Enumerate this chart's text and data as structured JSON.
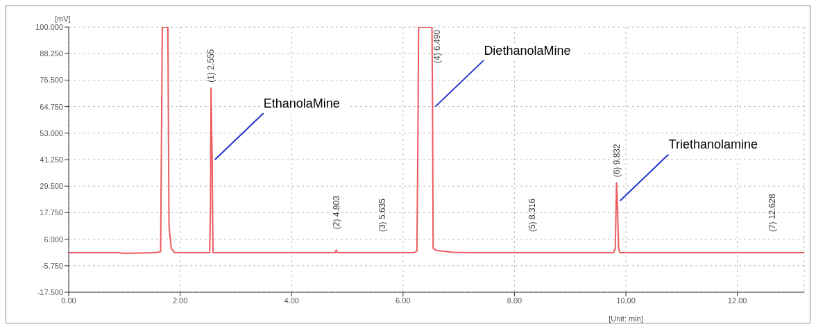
{
  "chart_data": {
    "type": "line",
    "xlabel": "[Unit: min]",
    "ylabel": "[mV]",
    "x": [
      0,
      0.9,
      1.0,
      1.55,
      1.65,
      1.68,
      1.78,
      1.8,
      1.84,
      1.9,
      2.53,
      2.545,
      2.555,
      2.565,
      2.575,
      2.59,
      4.78,
      4.803,
      4.82,
      5.635,
      6.2,
      6.25,
      6.27,
      6.28,
      6.49,
      6.52,
      6.53,
      6.54,
      6.6,
      6.75,
      6.9,
      7.2,
      8.316,
      9.78,
      9.81,
      9.832,
      9.845,
      9.87,
      9.89,
      12.628,
      13.2
    ],
    "series": [
      {
        "color": "#ee5a5f",
        "values": [
          0,
          0,
          -0.3,
          0,
          0.5,
          100,
          100,
          12,
          2,
          0,
          0,
          20,
          73,
          55,
          41.25,
          0,
          0,
          1.2,
          0,
          0,
          0,
          0.8,
          60,
          100,
          100,
          100,
          64.75,
          2,
          1,
          0.6,
          0.2,
          0,
          0,
          0,
          2,
          31,
          23,
          2,
          0,
          0,
          0
        ]
      }
    ],
    "xlim": [
      0,
      13.2
    ],
    "xticks": [
      {
        "value": 0,
        "label": "0.00"
      },
      {
        "value": 2,
        "label": "2.00"
      },
      {
        "value": 4,
        "label": "4.00"
      },
      {
        "value": 6,
        "label": "6.00"
      },
      {
        "value": 8,
        "label": "8.00"
      },
      {
        "value": 10,
        "label": "10.00"
      },
      {
        "value": 12,
        "label": "12.00"
      }
    ],
    "ylim": [
      -17.5,
      100
    ],
    "yticks": [
      {
        "value": -17.5,
        "label": "-17.500"
      },
      {
        "value": -5.75,
        "label": "-5.750"
      },
      {
        "value": 6,
        "label": "6.000"
      },
      {
        "value": 17.75,
        "label": "17.750"
      },
      {
        "value": 29.5,
        "label": "29.500"
      },
      {
        "value": 41.25,
        "label": "41.250"
      },
      {
        "value": 53,
        "label": "53.000"
      },
      {
        "value": 64.75,
        "label": "64.750"
      },
      {
        "value": 76.5,
        "label": "76.500"
      },
      {
        "value": 88.25,
        "label": "88.250"
      },
      {
        "value": 100,
        "label": "100.000"
      }
    ],
    "grid": true,
    "line_style": "solid",
    "marker": "none",
    "annotations": [
      {
        "text": "(1) 2.555",
        "x": 2.555,
        "y": 73
      },
      {
        "text": "(2) 4.803",
        "x": 4.803,
        "y": 1.2
      },
      {
        "text": "(3) 5.635",
        "x": 5.635,
        "y": 0
      },
      {
        "text": "(4) 6.490",
        "x": 6.49,
        "y": 100
      },
      {
        "text": "(5) 8.316",
        "x": 8.316,
        "y": 0
      },
      {
        "text": "(6) 9.832",
        "x": 9.832,
        "y": 31
      },
      {
        "text": "(7) 12.628",
        "x": 12.628,
        "y": 0
      },
      {
        "text": "EthanolaMine",
        "x": 2.575,
        "y": 41.25
      },
      {
        "text": "DiethanolaMine",
        "x": 6.53,
        "y": 64.75
      },
      {
        "text": "Triethanolamine",
        "x": 9.845,
        "y": 23
      }
    ]
  }
}
